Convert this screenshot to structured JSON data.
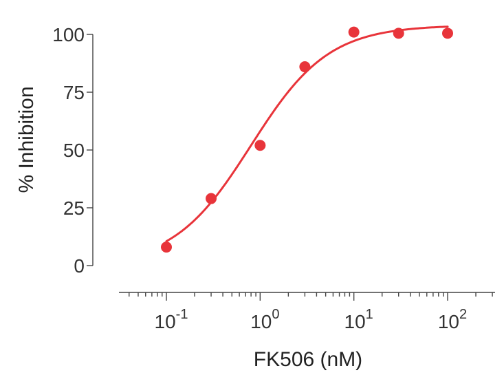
{
  "chart_data": {
    "type": "scatter",
    "title": "",
    "xlabel": "FK506 (nM)",
    "ylabel": "% Inhibition",
    "x_scale": "log",
    "xlim": [
      0.03,
      300
    ],
    "ylim": [
      0,
      100
    ],
    "x_ticks": [
      {
        "value": 0.1,
        "base": "10",
        "exp": "-1"
      },
      {
        "value": 1,
        "base": "10",
        "exp": "0"
      },
      {
        "value": 10,
        "base": "10",
        "exp": "1"
      },
      {
        "value": 100,
        "base": "10",
        "exp": "2"
      }
    ],
    "y_ticks": [
      {
        "value": 0,
        "label": "0"
      },
      {
        "value": 25,
        "label": "25"
      },
      {
        "value": 50,
        "label": "50"
      },
      {
        "value": 75,
        "label": "75"
      },
      {
        "value": 100,
        "label": "100"
      }
    ],
    "grid": false,
    "legend": "none",
    "series": [
      {
        "points": [
          {
            "x": 0.1,
            "y": 8
          },
          {
            "x": 0.3,
            "y": 29
          },
          {
            "x": 1,
            "y": 52
          },
          {
            "x": 3,
            "y": 86
          },
          {
            "x": 10,
            "y": 101
          },
          {
            "x": 30,
            "y": 100.5
          },
          {
            "x": 100,
            "y": 100.5
          }
        ],
        "color": "#e8343a"
      }
    ],
    "fit_curve": {
      "model": "4-parameter logistic",
      "bottom": 0,
      "top": 104,
      "ic50": 0.8,
      "hill_slope": 1.05,
      "x_range": [
        0.1,
        100
      ],
      "color": "#e8343a"
    }
  }
}
